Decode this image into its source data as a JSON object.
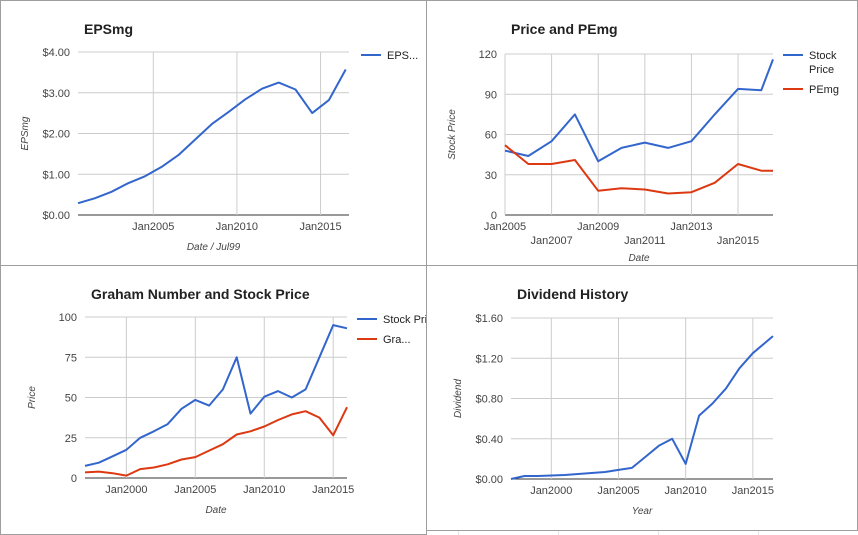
{
  "chart_data": [
    {
      "type": "line",
      "title": "EPSmg",
      "xlabel": "Date / Jul99",
      "ylabel": "EPSmg",
      "x_ticks": [
        "Jan2005",
        "Jan2010",
        "Jan2015"
      ],
      "x_tick_values": [
        2005,
        2010,
        2015
      ],
      "y_ticks": [
        "$0.00",
        "$1.00",
        "$2.00",
        "$3.00",
        "$4.00"
      ],
      "y_tick_values": [
        0,
        1,
        2,
        3,
        4
      ],
      "xlim": [
        2000.5,
        2016.7
      ],
      "ylim": [
        0,
        4
      ],
      "grid": true,
      "legend_position": "right",
      "series": [
        {
          "name": "EPS...",
          "color": "#3366cc",
          "x": [
            2000.5,
            2001.5,
            2002.5,
            2003.5,
            2004.5,
            2005.5,
            2006.5,
            2007.5,
            2008.5,
            2009.5,
            2010.5,
            2011.5,
            2012.5,
            2013.5,
            2014.5,
            2015.5,
            2016.5
          ],
          "y": [
            0.29,
            0.41,
            0.57,
            0.78,
            0.95,
            1.18,
            1.47,
            1.85,
            2.23,
            2.53,
            2.84,
            3.1,
            3.25,
            3.08,
            2.5,
            2.82,
            3.57
          ]
        }
      ]
    },
    {
      "type": "line",
      "title": "Price and PEmg",
      "xlabel": "Date",
      "ylabel": "Stock Price",
      "x_ticks": [
        "Jan2005",
        "Jan2007",
        "Jan2009",
        "Jan2011",
        "Jan2013",
        "Jan2015"
      ],
      "x_tick_values": [
        2005,
        2007,
        2009,
        2011,
        2013,
        2015
      ],
      "y_ticks": [
        "0",
        "30",
        "60",
        "90",
        "120"
      ],
      "y_tick_values": [
        0,
        30,
        60,
        90,
        120
      ],
      "xlim": [
        2005,
        2016.5
      ],
      "ylim": [
        0,
        120
      ],
      "grid": true,
      "legend_position": "right",
      "series": [
        {
          "name": "Stock Price",
          "color": "#3366cc",
          "x": [
            2005,
            2006,
            2007,
            2008,
            2009,
            2010,
            2011,
            2012,
            2013,
            2014,
            2015,
            2016,
            2016.5
          ],
          "y": [
            48,
            44,
            55,
            75,
            40,
            50,
            54,
            50,
            55,
            75,
            94,
            93,
            116
          ]
        },
        {
          "name": "PEmg",
          "color": "#dc3912",
          "x": [
            2005,
            2006,
            2007,
            2008,
            2009,
            2010,
            2011,
            2012,
            2013,
            2014,
            2015,
            2016,
            2016.5
          ],
          "y": [
            52,
            38,
            38,
            41,
            18,
            20,
            19,
            16,
            17,
            24,
            38,
            33,
            33
          ]
        }
      ]
    },
    {
      "type": "line",
      "title": "Graham Number and Stock Price",
      "xlabel": "Date",
      "ylabel": "Price",
      "x_ticks": [
        "Jan2000",
        "Jan2005",
        "Jan2010",
        "Jan2015"
      ],
      "x_tick_values": [
        2000,
        2005,
        2010,
        2015
      ],
      "y_ticks": [
        "0",
        "25",
        "50",
        "75",
        "100"
      ],
      "y_tick_values": [
        0,
        25,
        50,
        75,
        100
      ],
      "xlim": [
        1997,
        2016
      ],
      "ylim": [
        0,
        100
      ],
      "grid": true,
      "legend_position": "right",
      "series": [
        {
          "name": "Stock Price",
          "color": "#3366cc",
          "x": [
            1997,
            1998,
            1999,
            2000,
            2001,
            2002,
            2003,
            2004,
            2005,
            2006,
            2007,
            2008,
            2009,
            2010,
            2011,
            2012,
            2013,
            2014,
            2015,
            2016
          ],
          "y": [
            7.5,
            9.5,
            13.5,
            17.5,
            25,
            29,
            33.5,
            43,
            48.5,
            45,
            55,
            75,
            40,
            50.5,
            54,
            50,
            55,
            75,
            95,
            93
          ]
        },
        {
          "name": "Gra...",
          "color": "#dc3912",
          "x": [
            1997,
            1998,
            1999,
            2000,
            2001,
            2002,
            2003,
            2004,
            2005,
            2006,
            2007,
            2008,
            2009,
            2010,
            2011,
            2012,
            2013,
            2014,
            2015,
            2016
          ],
          "y": [
            3.5,
            4,
            3,
            1.5,
            5.5,
            6.5,
            8.5,
            11.5,
            13,
            17,
            21,
            27,
            29,
            32,
            36,
            39.5,
            41.5,
            37.5,
            26.5,
            44
          ]
        }
      ]
    },
    {
      "type": "line",
      "title": "Dividend History",
      "xlabel": "Year",
      "ylabel": "Dividend",
      "x_ticks": [
        "Jan2000",
        "Jan2005",
        "Jan2010",
        "Jan2015"
      ],
      "x_tick_values": [
        2000,
        2005,
        2010,
        2015
      ],
      "y_ticks": [
        "$0.00",
        "$0.40",
        "$0.80",
        "$1.20",
        "$1.60"
      ],
      "y_tick_values": [
        0,
        0.4,
        0.8,
        1.2,
        1.6
      ],
      "xlim": [
        1997,
        2016.5
      ],
      "ylim": [
        0,
        1.6
      ],
      "grid": true,
      "legend_position": "none",
      "series": [
        {
          "name": "",
          "color": "#3366cc",
          "x": [
            1997,
            1998,
            1999,
            2000,
            2001,
            2002,
            2003,
            2004,
            2005,
            2006,
            2007,
            2008,
            2009,
            2010,
            2011,
            2012,
            2013,
            2014,
            2015,
            2016.5
          ],
          "y": [
            0,
            0.03,
            0.03,
            0.035,
            0.04,
            0.05,
            0.06,
            0.07,
            0.09,
            0.11,
            0.22,
            0.33,
            0.4,
            0.15,
            0.63,
            0.75,
            0.9,
            1.1,
            1.25,
            1.42
          ]
        }
      ]
    }
  ]
}
